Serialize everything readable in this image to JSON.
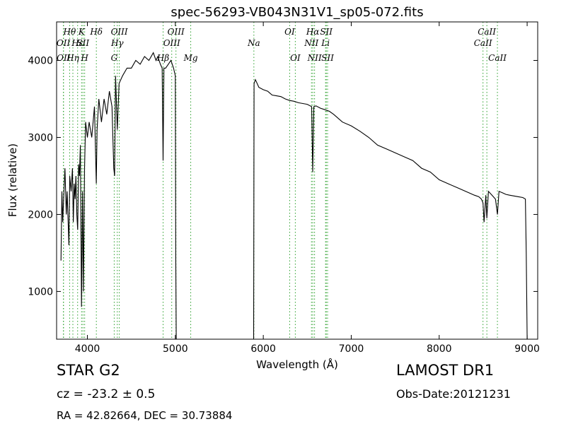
{
  "chart_data": {
    "type": "line",
    "title": "spec-56293-VB043N31V1_sp05-072.fits",
    "xlabel": "Wavelength (Å)",
    "ylabel": "Flux (relative)",
    "xlim": [
      3650,
      9120
    ],
    "ylim": [
      380,
      4500
    ],
    "xticks": [
      4000,
      5000,
      6000,
      7000,
      8000,
      9000
    ],
    "yticks": [
      1000,
      2000,
      3000,
      4000
    ],
    "grid": false,
    "line_color": "#000000",
    "marker_color": "#2ca02c",
    "gaps": [
      [
        5010,
        5890
      ]
    ],
    "spectrum": {
      "x": [
        3700,
        3710,
        3720,
        3730,
        3745,
        3760,
        3770,
        3790,
        3800,
        3815,
        3830,
        3840,
        3850,
        3860,
        3870,
        3880,
        3890,
        3900,
        3910,
        3920,
        3933,
        3945,
        3955,
        3968,
        3980,
        4000,
        4020,
        4050,
        4080,
        4101,
        4110,
        4130,
        4160,
        4190,
        4220,
        4250,
        4280,
        4300,
        4310,
        4320,
        4340,
        4360,
        4400,
        4450,
        4500,
        4550,
        4600,
        4650,
        4700,
        4750,
        4780,
        4800,
        4830,
        4850,
        4861,
        4870,
        4890,
        4920,
        4950,
        4980,
        5000,
        5005,
        5010,
        5890,
        5895,
        5910,
        5950,
        6000,
        6050,
        6100,
        6150,
        6200,
        6250,
        6300,
        6350,
        6400,
        6450,
        6500,
        6550,
        6562,
        6575,
        6600,
        6650,
        6700,
        6750,
        6800,
        6900,
        7000,
        7100,
        7200,
        7300,
        7400,
        7500,
        7600,
        7700,
        7800,
        7900,
        8000,
        8100,
        8200,
        8300,
        8400,
        8450,
        8480,
        8498,
        8510,
        8530,
        8542,
        8560,
        8600,
        8640,
        8662,
        8680,
        8720,
        8760,
        8800,
        8850,
        8900,
        8950,
        8980,
        8990,
        9000
      ],
      "y": [
        1400,
        2300,
        1900,
        2200,
        2600,
        2000,
        2300,
        1600,
        2500,
        2300,
        2600,
        1900,
        2400,
        2200,
        2500,
        2000,
        1800,
        2650,
        2500,
        2900,
        800,
        2300,
        1000,
        2600,
        3200,
        3000,
        3200,
        3000,
        3400,
        2400,
        3100,
        3500,
        3200,
        3500,
        3300,
        3600,
        3400,
        2600,
        2500,
        3800,
        3100,
        3700,
        3800,
        3900,
        3900,
        4000,
        3950,
        4050,
        4000,
        4100,
        4000,
        4050,
        3950,
        3900,
        2700,
        3900,
        3900,
        3950,
        4000,
        3900,
        3800,
        1500,
        380,
        380,
        3700,
        3750,
        3650,
        3620,
        3600,
        3550,
        3540,
        3530,
        3500,
        3480,
        3470,
        3450,
        3440,
        3430,
        3400,
        2550,
        3400,
        3410,
        3380,
        3360,
        3340,
        3300,
        3200,
        3150,
        3080,
        3000,
        2900,
        2850,
        2800,
        2750,
        2700,
        2600,
        2550,
        2450,
        2400,
        2350,
        2300,
        2250,
        2230,
        2200,
        2150,
        1900,
        2250,
        1950,
        2300,
        2250,
        2200,
        2000,
        2300,
        2280,
        2260,
        2250,
        2240,
        2230,
        2220,
        2200,
        1500,
        380
      ]
    },
    "lines": [
      {
        "label": "OII",
        "x": 3727,
        "row": 2
      },
      {
        "label": "OII",
        "x": 3729,
        "row": 3
      },
      {
        "label": "Hθ",
        "x": 3798,
        "row": 1
      },
      {
        "label": "Hη",
        "x": 3835,
        "row": 3
      },
      {
        "label": "Hε",
        "x": 3889,
        "row": 2
      },
      {
        "label": "K",
        "x": 3934,
        "row": 1
      },
      {
        "label": "SII",
        "x": 3950,
        "row": 2
      },
      {
        "label": "H",
        "x": 3969,
        "row": 3
      },
      {
        "label": "Hδ",
        "x": 4102,
        "row": 1
      },
      {
        "label": "OIII",
        "x": 4363,
        "row": 1
      },
      {
        "label": "Hγ",
        "x": 4340,
        "row": 2
      },
      {
        "label": "G",
        "x": 4305,
        "row": 3
      },
      {
        "label": "OIII",
        "x": 5007,
        "row": 1
      },
      {
        "label": "OIII",
        "x": 4959,
        "row": 2
      },
      {
        "label": "Hβ",
        "x": 4861,
        "row": 3
      },
      {
        "label": "Mg",
        "x": 5175,
        "row": 3
      },
      {
        "label": "Na",
        "x": 5893,
        "row": 2
      },
      {
        "label": "OI",
        "x": 6300,
        "row": 1
      },
      {
        "label": "OI",
        "x": 6364,
        "row": 3
      },
      {
        "label": "Hα",
        "x": 6563,
        "row": 1
      },
      {
        "label": "NII",
        "x": 6548,
        "row": 2
      },
      {
        "label": "NII",
        "x": 6583,
        "row": 3
      },
      {
        "label": "SII",
        "x": 6716,
        "row": 1
      },
      {
        "label": "Li",
        "x": 6708,
        "row": 2
      },
      {
        "label": "SII",
        "x": 6731,
        "row": 3
      },
      {
        "label": "CaII",
        "x": 8498,
        "row": 2
      },
      {
        "label": "CaII",
        "x": 8542,
        "row": 1
      },
      {
        "label": "CaII",
        "x": 8662,
        "row": 3
      }
    ]
  },
  "footer": {
    "object_class": "STAR   G2",
    "survey": "LAMOST DR1",
    "cz": "cz = -23.2 ± 0.5",
    "obs_date": "Obs-Date:20121231",
    "ra_dec": "RA = 42.82664, DEC = 30.73884"
  }
}
